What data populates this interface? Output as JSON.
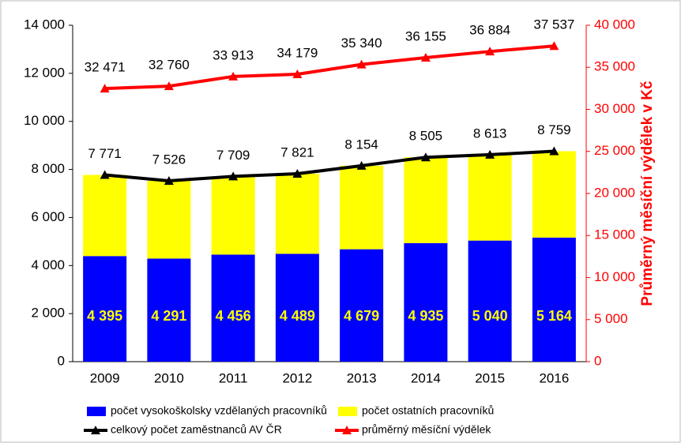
{
  "chart_data": {
    "type": "bar",
    "y2label": "Průměrný měsíční výdělek v Kč",
    "categories": [
      "2009",
      "2010",
      "2011",
      "2012",
      "2013",
      "2014",
      "2015",
      "2016"
    ],
    "series": [
      {
        "name": "počet vysokoškolsky vzdělaných pracovníků",
        "type": "bar",
        "color": "#0000ff",
        "values": [
          4395,
          4291,
          4456,
          4489,
          4679,
          4935,
          5040,
          5164
        ],
        "value_labels": [
          "4 395",
          "4 291",
          "4 456",
          "4 489",
          "4 679",
          "4 935",
          "5 040",
          "5 164"
        ]
      },
      {
        "name": "počet ostatních pracovníků",
        "type": "bar",
        "color": "#ffff00",
        "values": [
          3376,
          3235,
          3253,
          3332,
          3475,
          3570,
          3573,
          3595
        ]
      },
      {
        "name": "celkový počet zaměstnanců AV ČR",
        "type": "line",
        "color": "#000000",
        "values": [
          7771,
          7526,
          7709,
          7821,
          8154,
          8505,
          8613,
          8759
        ],
        "value_labels": [
          "7 771",
          "7 526",
          "7 709",
          "7 821",
          "8 154",
          "8 505",
          "8 613",
          "8 759"
        ]
      },
      {
        "name": "průměrný měsíční výdělek",
        "type": "line",
        "color": "#ff0000",
        "axis": "y2",
        "values": [
          32471,
          32760,
          33913,
          34179,
          35340,
          36155,
          36884,
          37537
        ],
        "value_labels": [
          "32 471",
          "32 760",
          "33 913",
          "34 179",
          "35 340",
          "36 155",
          "36 884",
          "37 537"
        ]
      }
    ],
    "ylim": [
      0,
      14000
    ],
    "yticks": [
      0,
      {
        "value": 2000,
        "label": "2 000"
      },
      {
        "value": 4000,
        "label": "4 000"
      },
      {
        "value": 6000,
        "label": "6 000"
      },
      {
        "value": 8000,
        "label": "8 000"
      },
      {
        "value": 10000,
        "label": "10 000"
      },
      {
        "value": 12000,
        "label": "12 000"
      },
      {
        "value": 14000,
        "label": "14 000"
      }
    ],
    "y2lim": [
      0,
      40000
    ],
    "y2ticks": [
      0,
      {
        "value": 5000,
        "label": "5 000"
      },
      {
        "value": 10000,
        "label": "10 000"
      },
      {
        "value": 15000,
        "label": "15 000"
      },
      {
        "value": 20000,
        "label": "20 000"
      },
      {
        "value": 25000,
        "label": "25 000"
      },
      {
        "value": 30000,
        "label": "30 000"
      },
      {
        "value": 35000,
        "label": "35 000"
      },
      {
        "value": 40000,
        "label": "40 000"
      }
    ],
    "y2color": "#ff0000"
  }
}
